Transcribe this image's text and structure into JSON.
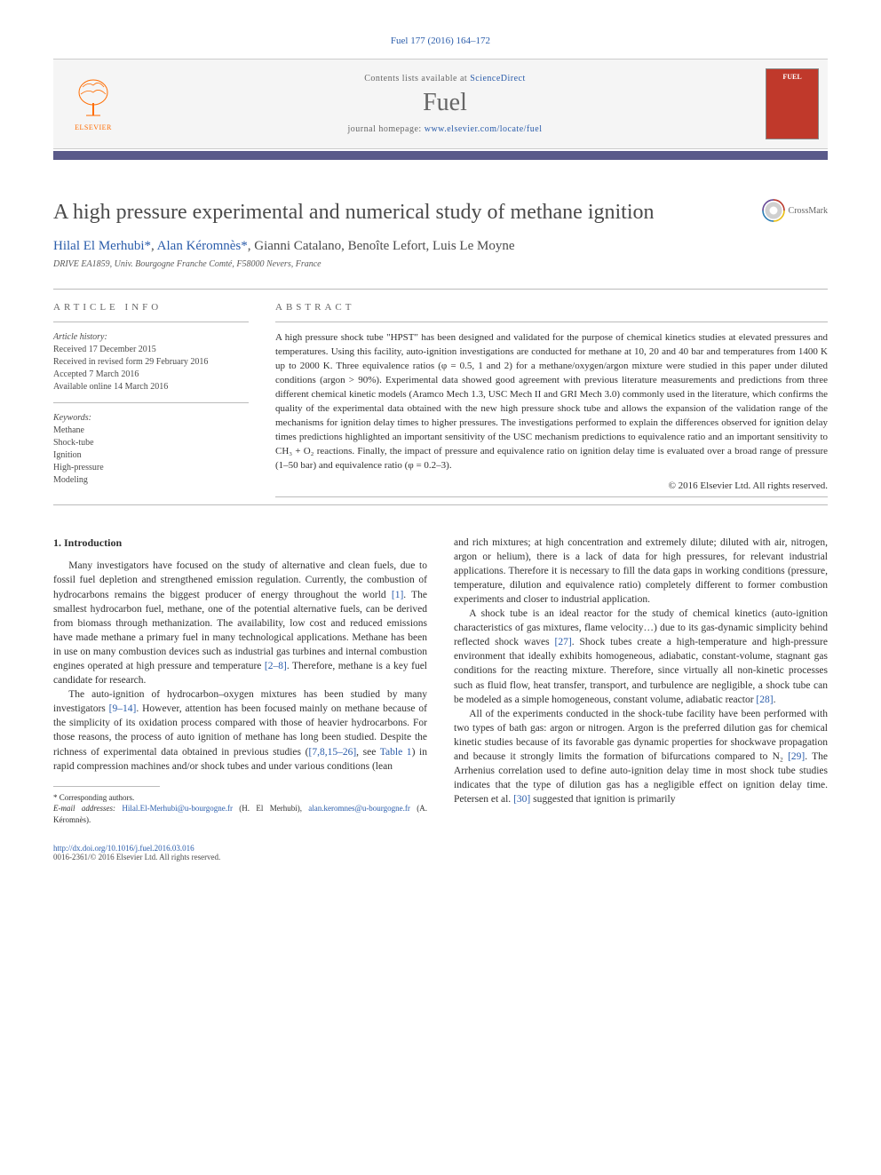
{
  "journal_ref": "Fuel 177 (2016) 164–172",
  "banner": {
    "publisher_name": "ELSEVIER",
    "contents_text": "Contents lists available at ",
    "contents_link": "ScienceDirect",
    "journal_name": "Fuel",
    "homepage_label": "journal homepage: ",
    "homepage_url": "www.elsevier.com/locate/fuel",
    "cover_title": "FUEL",
    "accent_color": "#5a5a8a",
    "banner_bg": "#f5f5f5",
    "cover_bg": "#c0392b"
  },
  "crossmark_label": "CrossMark",
  "title": "A high pressure experimental and numerical study of methane ignition",
  "authors_html": "Hilal El Merhubi *, Alan Kéromnès *, Gianni Catalano, Benoîte Lefort, Luis Le Moyne",
  "author1": "Hilal El Merhubi",
  "author2": "Alan Kéromnès",
  "author3": "Gianni Catalano",
  "author4": "Benoîte Lefort",
  "author5": "Luis Le Moyne",
  "star": "*",
  "comma": ", ",
  "affiliation": "DRIVE EA1859, Univ. Bourgogne Franche Comté, F58000 Nevers, France",
  "info": {
    "label": "ARTICLE INFO",
    "history_label": "Article history:",
    "received": "Received 17 December 2015",
    "revised": "Received in revised form 29 February 2016",
    "accepted": "Accepted 7 March 2016",
    "online": "Available online 14 March 2016",
    "keywords_label": "Keywords:",
    "kw1": "Methane",
    "kw2": "Shock-tube",
    "kw3": "Ignition",
    "kw4": "High-pressure",
    "kw5": "Modeling"
  },
  "abstract": {
    "label": "ABSTRACT",
    "text": "A high pressure shock tube \"HPST\" has been designed and validated for the purpose of chemical kinetics studies at elevated pressures and temperatures. Using this facility, auto-ignition investigations are conducted for methane at 10, 20 and 40 bar and temperatures from 1400 K up to 2000 K. Three equivalence ratios (φ = 0.5, 1 and 2) for a methane/oxygen/argon mixture were studied in this paper under diluted conditions (argon > 90%). Experimental data showed good agreement with previous literature measurements and predictions from three different chemical kinetic models (Aramco Mech 1.3, USC Mech II and GRI Mech 3.0) commonly used in the literature, which confirms the quality of the experimental data obtained with the new high pressure shock tube and allows the expansion of the validation range of the mechanisms for ignition delay times to higher pressures. The investigations performed to explain the differences observed for ignition delay times predictions highlighted an important sensitivity of the USC mechanism predictions to equivalence ratio and an important sensitivity to CH₃ + O₂ reactions. Finally, the impact of pressure and equivalence ratio on ignition delay time is evaluated over a broad range of pressure (1–50 bar) and equivalence ratio (φ = 0.2–3).",
    "copyright": "© 2016 Elsevier Ltd. All rights reserved."
  },
  "section1_heading": "1. Introduction",
  "body": {
    "p1": "Many investigators have focused on the study of alternative and clean fuels, due to fossil fuel depletion and strengthened emission regulation. Currently, the combustion of hydrocarbons remains the biggest producer of energy throughout the world [1]. The smallest hydrocarbon fuel, methane, one of the potential alternative fuels, can be derived from biomass through methanization. The availability, low cost and reduced emissions have made methane a primary fuel in many technological applications. Methane has been in use on many combustion devices such as industrial gas turbines and internal combustion engines operated at high pressure and temperature [2–8]. Therefore, methane is a key fuel candidate for research.",
    "p2": "The auto-ignition of hydrocarbon–oxygen mixtures has been studied by many investigators [9–14]. However, attention has been focused mainly on methane because of the simplicity of its oxidation process compared with those of heavier hydrocarbons. For those reasons, the process of auto ignition of methane has long been studied. Despite the richness of experimental data obtained in previous studies ([7,8,15–26], see Table 1) in rapid compression machines and/or shock tubes and under various conditions (lean",
    "p3": "and rich mixtures; at high concentration and extremely dilute; diluted with air, nitrogen, argon or helium), there is a lack of data for high pressures, for relevant industrial applications. Therefore it is necessary to fill the data gaps in working conditions (pressure, temperature, dilution and equivalence ratio) completely different to former combustion experiments and closer to industrial application.",
    "p4": "A shock tube is an ideal reactor for the study of chemical kinetics (auto-ignition characteristics of gas mixtures, flame velocity…) due to its gas-dynamic simplicity behind reflected shock waves [27]. Shock tubes create a high-temperature and high-pressure environment that ideally exhibits homogeneous, adiabatic, constant-volume, stagnant gas conditions for the reacting mixture. Therefore, since virtually all non-kinetic processes such as fluid flow, heat transfer, transport, and turbulence are negligible, a shock tube can be modeled as a simple homogeneous, constant volume, adiabatic reactor [28].",
    "p5": "All of the experiments conducted in the shock-tube facility have been performed with two types of bath gas: argon or nitrogen. Argon is the preferred dilution gas for chemical kinetic studies because of its favorable gas dynamic properties for shockwave propagation and because it strongly limits the formation of bifurcations compared to N₂ [29]. The Arrhenius correlation used to define auto-ignition delay time in most shock tube studies indicates that the type of dilution gas has a negligible effect on ignition delay time. Petersen et al. [30] suggested that ignition is primarily"
  },
  "footer": {
    "corr_label": "* Corresponding authors.",
    "email_label": "E-mail addresses:",
    "email1": "Hilal.El-Merhubi@u-bourgogne.fr",
    "email1_name": " (H. El Merhubi), ",
    "email2": "alan.keromnes@u-bourgogne.fr",
    "email2_name": " (A. Kéromnès).",
    "doi_url": "http://dx.doi.org/10.1016/j.fuel.2016.03.016",
    "issn": "0016-2361/© 2016 Elsevier Ltd. All rights reserved."
  },
  "colors": {
    "link": "#2a5caa",
    "text": "#303030",
    "muted": "#666666",
    "accent": "#5a5a8a",
    "elsevier": "#ff6c00"
  }
}
